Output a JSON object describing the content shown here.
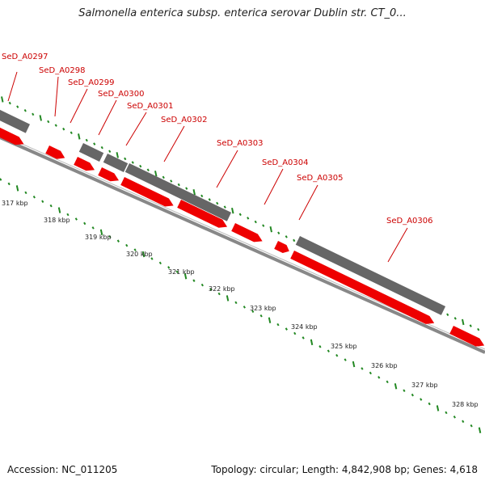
{
  "title": "Salmonella enterica subsp. enterica serovar Dublin str. CT_0...",
  "footer": {
    "accession": "Accession: NC_011205",
    "summary": "Topology: circular; Length: 4,842,908 bp; Genes: 4,618"
  },
  "colors": {
    "forward_gene": "#ee0000",
    "reverse_gene": "#666666",
    "label": "#cc0000",
    "tick": "#228822",
    "backbone": "#888888"
  },
  "genes": [
    {
      "label": "SeD_A0297"
    },
    {
      "label": "SeD_A0298"
    },
    {
      "label": "SeD_A0299"
    },
    {
      "label": "SeD_A0300"
    },
    {
      "label": "SeD_A0301"
    },
    {
      "label": "SeD_A0302"
    },
    {
      "label": "SeD_A0303"
    },
    {
      "label": "SeD_A0304"
    },
    {
      "label": "SeD_A0305"
    },
    {
      "label": "SeD_A0306"
    }
  ],
  "scale_labels": [
    "317 kbp",
    "318 kbp",
    "319 kbp",
    "320 kbp",
    "321 kbp",
    "322 kbp",
    "323 kbp",
    "324 kbp",
    "325 kbp",
    "326 kbp",
    "327 kbp",
    "328 kbp"
  ]
}
